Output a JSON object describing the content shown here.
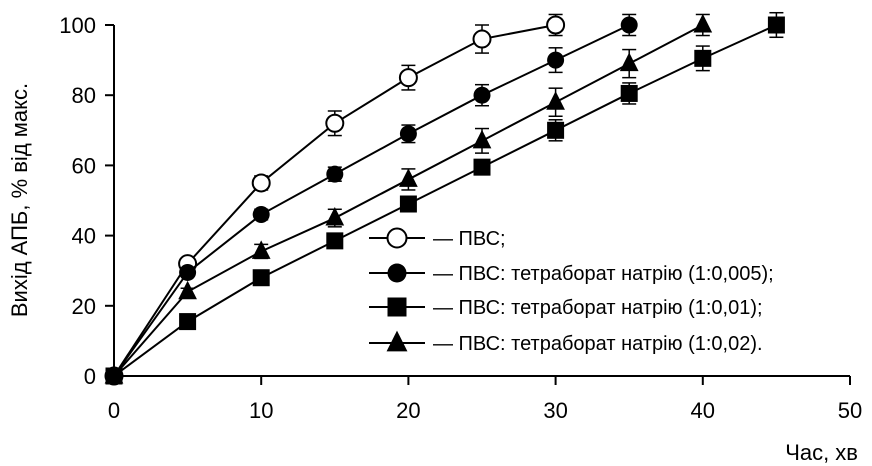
{
  "chart_data": {
    "type": "line",
    "xlabel": "Час, хв",
    "ylabel": "Вихід АПБ, % від макс.",
    "xlim": [
      0,
      50
    ],
    "ylim": [
      0,
      100
    ],
    "x_ticks": [
      0,
      10,
      20,
      30,
      40,
      50
    ],
    "y_ticks": [
      0,
      20,
      40,
      60,
      80,
      100
    ],
    "grid": false,
    "legend_placement": "bottom-right",
    "series": [
      {
        "name": "— ПВС;",
        "marker": "circle-open",
        "x": [
          0,
          5,
          10,
          15,
          20,
          25,
          30
        ],
        "values": [
          0,
          32,
          55,
          72,
          85,
          96,
          100
        ],
        "errors": [
          0,
          1,
          2,
          3.5,
          3.5,
          4,
          3
        ]
      },
      {
        "name": "— ПВС: тетраборат натрію (1:0,005);",
        "marker": "circle-filled",
        "x": [
          0,
          5,
          10,
          15,
          20,
          25,
          30,
          35
        ],
        "values": [
          0,
          29.5,
          46,
          57.5,
          69,
          80,
          90,
          100
        ],
        "errors": [
          0,
          1,
          1.5,
          2,
          2.5,
          3,
          3.5,
          3
        ]
      },
      {
        "name": "— ПВС: тетраборат натрію (1:0,01);",
        "marker": "square-filled",
        "x": [
          0,
          5,
          10,
          15,
          20,
          25,
          30,
          35,
          40,
          45
        ],
        "values": [
          0,
          15.5,
          28,
          38.5,
          49,
          59.5,
          70,
          80.5,
          90.5,
          100
        ],
        "errors": [
          0,
          1,
          1.5,
          1.5,
          2,
          2,
          3,
          3,
          3.5,
          3.5
        ]
      },
      {
        "name": "— ПВС: тетраборат натрію (1:0,02).",
        "marker": "triangle-filled",
        "x": [
          0,
          5,
          10,
          15,
          20,
          25,
          30,
          35,
          40
        ],
        "values": [
          0,
          24,
          35.5,
          45,
          56,
          67,
          78,
          89,
          100
        ],
        "errors": [
          0,
          1,
          2,
          2.5,
          3,
          3.5,
          4,
          4,
          3
        ]
      }
    ]
  }
}
